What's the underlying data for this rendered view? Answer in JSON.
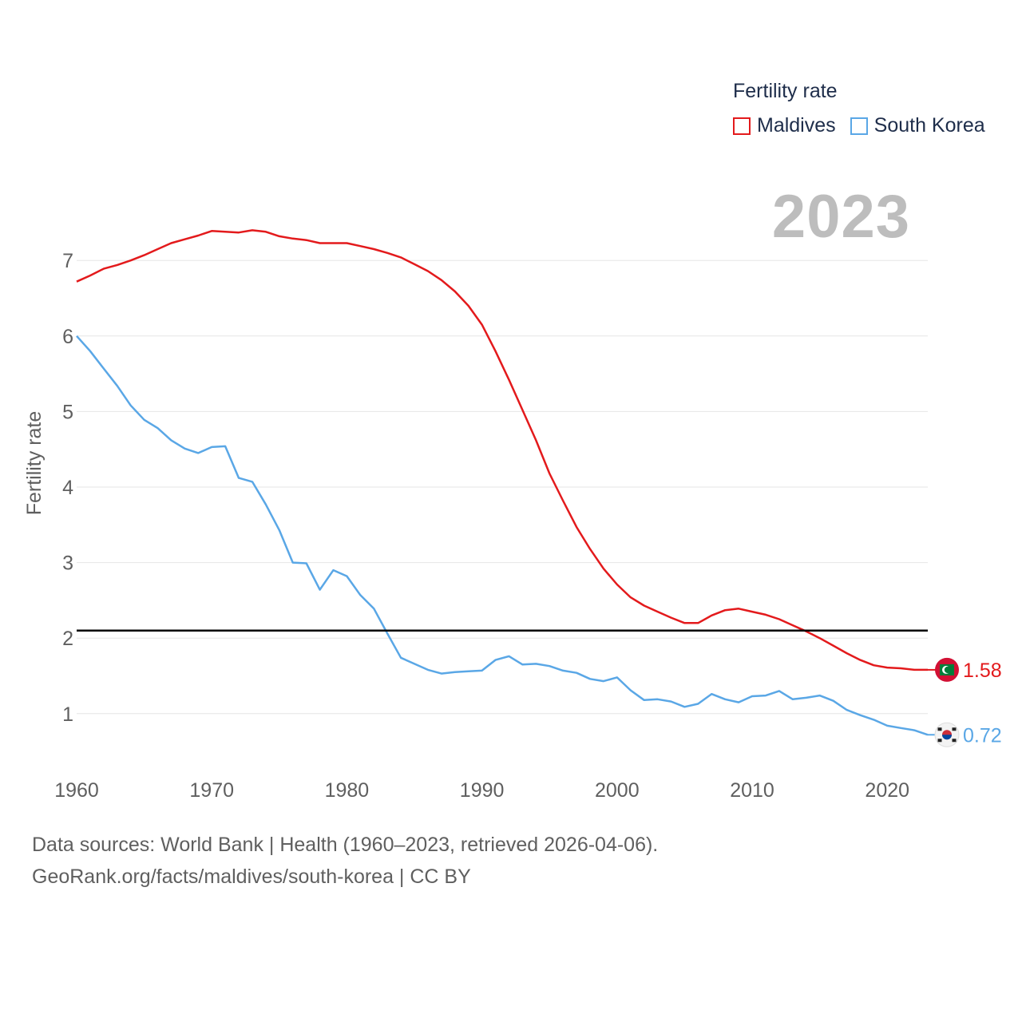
{
  "chart_data": {
    "type": "line",
    "title": "Fertility rate",
    "year_label": "2023",
    "ylabel": "Fertility rate",
    "xlabel": "",
    "xlim": [
      1960,
      2023
    ],
    "ylim": [
      0.3,
      7.7
    ],
    "x_ticks": [
      1960,
      1970,
      1980,
      1990,
      2000,
      2010,
      2020
    ],
    "y_ticks": [
      1,
      2,
      3,
      4,
      5,
      6,
      7
    ],
    "reference_line": 2.1,
    "grid": true,
    "legend_position": "top-right",
    "x": [
      1960,
      1961,
      1962,
      1963,
      1964,
      1965,
      1966,
      1967,
      1968,
      1969,
      1970,
      1971,
      1972,
      1973,
      1974,
      1975,
      1976,
      1977,
      1978,
      1979,
      1980,
      1981,
      1982,
      1983,
      1984,
      1985,
      1986,
      1987,
      1988,
      1989,
      1990,
      1991,
      1992,
      1993,
      1994,
      1995,
      1996,
      1997,
      1998,
      1999,
      2000,
      2001,
      2002,
      2003,
      2004,
      2005,
      2006,
      2007,
      2008,
      2009,
      2010,
      2011,
      2012,
      2013,
      2014,
      2015,
      2016,
      2017,
      2018,
      2019,
      2020,
      2021,
      2022,
      2023
    ],
    "series": [
      {
        "name": "Maldives",
        "color": "#e31a1c",
        "end_label": "1.58",
        "flag": "maldives-flag",
        "values": [
          6.72,
          6.8,
          6.89,
          6.94,
          7.0,
          7.07,
          7.15,
          7.23,
          7.28,
          7.33,
          7.39,
          7.38,
          7.37,
          7.4,
          7.38,
          7.32,
          7.29,
          7.27,
          7.23,
          7.23,
          7.23,
          7.19,
          7.15,
          7.1,
          7.04,
          6.95,
          6.86,
          6.74,
          6.59,
          6.4,
          6.15,
          5.8,
          5.42,
          5.02,
          4.62,
          4.18,
          3.82,
          3.47,
          3.18,
          2.92,
          2.71,
          2.54,
          2.43,
          2.35,
          2.27,
          2.2,
          2.2,
          2.3,
          2.37,
          2.39,
          2.35,
          2.31,
          2.25,
          2.17,
          2.09,
          2.0,
          1.9,
          1.8,
          1.71,
          1.64,
          1.61,
          1.6,
          1.58,
          1.58
        ]
      },
      {
        "name": "South Korea",
        "color": "#5aa7e6",
        "end_label": "0.72",
        "flag": "south-korea-flag",
        "values": [
          6.0,
          5.8,
          5.57,
          5.34,
          5.08,
          4.89,
          4.78,
          4.62,
          4.51,
          4.45,
          4.53,
          4.54,
          4.12,
          4.07,
          3.77,
          3.43,
          3.0,
          2.99,
          2.64,
          2.9,
          2.82,
          2.57,
          2.39,
          2.06,
          1.74,
          1.66,
          1.58,
          1.53,
          1.55,
          1.56,
          1.57,
          1.71,
          1.76,
          1.65,
          1.66,
          1.63,
          1.57,
          1.54,
          1.46,
          1.43,
          1.48,
          1.31,
          1.18,
          1.19,
          1.16,
          1.09,
          1.13,
          1.26,
          1.19,
          1.15,
          1.23,
          1.24,
          1.3,
          1.19,
          1.21,
          1.24,
          1.17,
          1.05,
          0.98,
          0.92,
          0.84,
          0.81,
          0.78,
          0.72
        ]
      }
    ]
  },
  "footer": {
    "line1": "Data sources: World Bank | Health (1960–2023, retrieved 2026-04-06).",
    "line2": "GeoRank.org/facts/maldives/south-korea | CC BY"
  }
}
